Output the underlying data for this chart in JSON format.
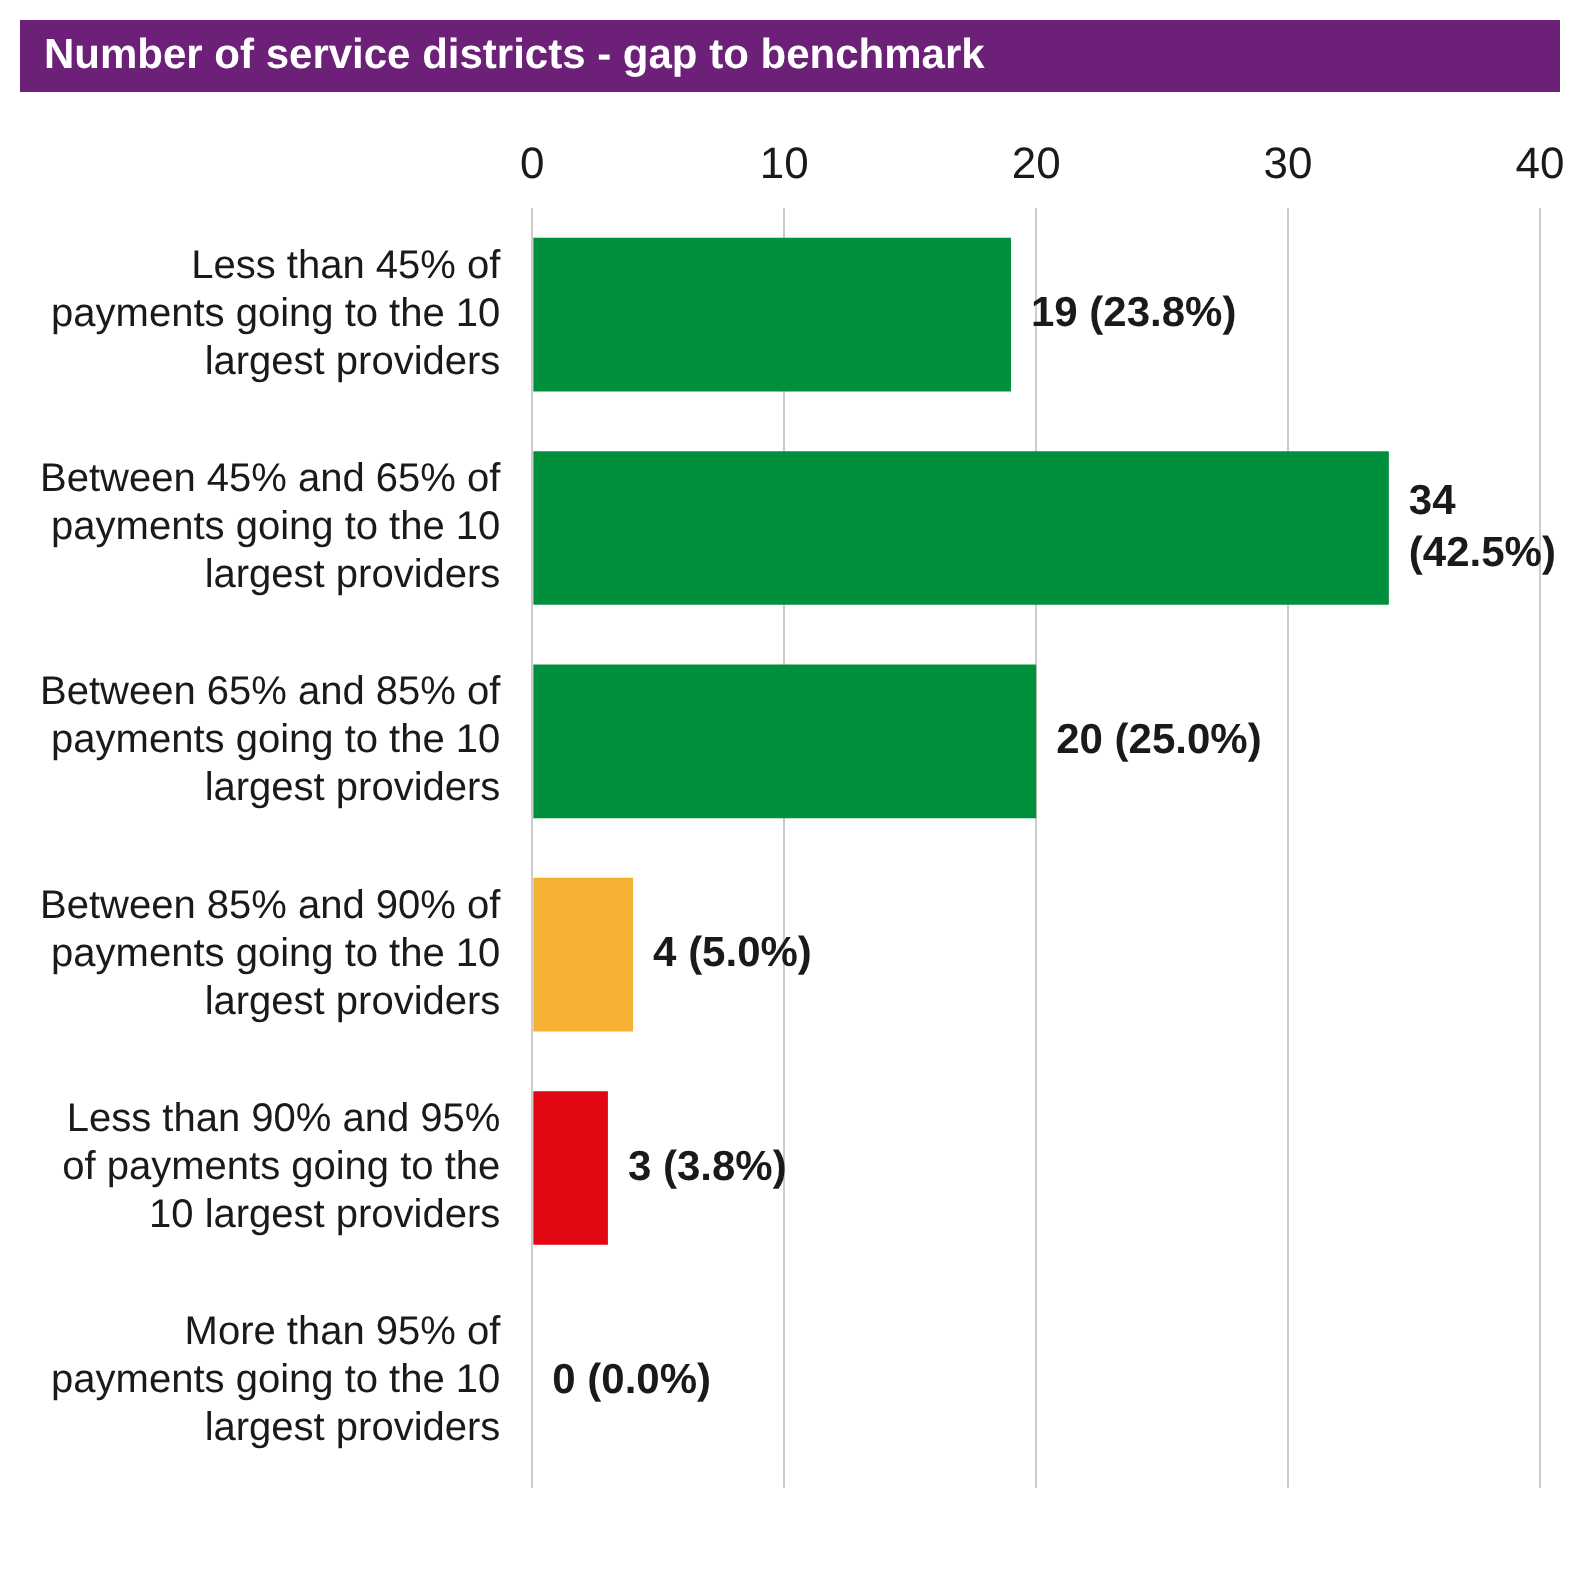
{
  "chart_data": {
    "type": "bar",
    "orientation": "horizontal",
    "title": "Number of service districts - gap to benchmark",
    "categories": [
      "Less than 45% of payments going to the 10 largest providers",
      "Between 45% and 65% of payments going to the 10 largest providers",
      "Between 65% and 85% of payments going to the 10 largest providers",
      "Between 85% and 90% of payments going to the 10 largest providers",
      "Less than 90% and 95% of payments going to the 10 largest providers",
      "More than 95% of payments going to the 10 largest providers"
    ],
    "values": [
      19,
      34,
      20,
      4,
      3,
      0
    ],
    "colors": [
      "#008f3a",
      "#008f3a",
      "#008f3a",
      "#f6b133",
      "#e30613",
      "#e30613"
    ],
    "value_labels": [
      "19 (23.8%)",
      "34 (42.5%)",
      "20 (25.0%)",
      "4 (5.0%)",
      "3 (3.8%)",
      "0 (0.0%)"
    ],
    "xlim": [
      0,
      40
    ],
    "xticks": [
      0,
      10,
      20,
      30,
      40
    ],
    "grid": "x",
    "legend": false
  }
}
